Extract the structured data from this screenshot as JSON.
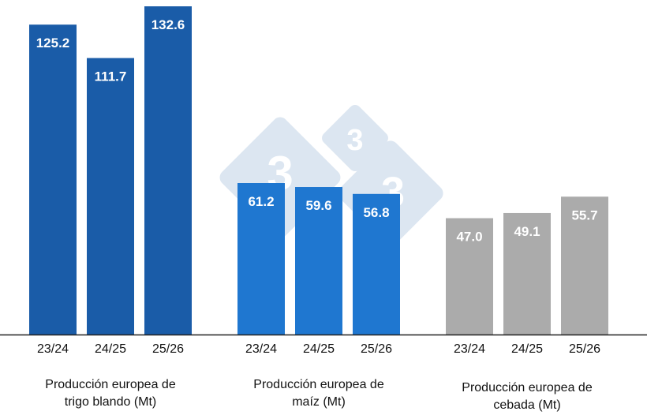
{
  "chart_data": {
    "type": "bar",
    "categories": [
      "23/24",
      "24/25",
      "25/26"
    ],
    "groups": [
      {
        "label": "Producción europea de trigo blando (Mt)",
        "line1": "Producción europea de",
        "line2": "trigo blando (Mt)",
        "values": [
          125.2,
          111.7,
          132.6
        ],
        "color": "#1a5ca8"
      },
      {
        "label": "Producción europea de maíz (Mt)",
        "line1": "Producción europea de",
        "line2": "maíz (Mt)",
        "values": [
          61.2,
          59.6,
          56.8
        ],
        "color": "#1f77d0"
      },
      {
        "label": "Producción europea de cebada (Mt)",
        "line1": "Producción europea de",
        "line2": "cebada (Mt)",
        "values": [
          47.0,
          49.1,
          55.7
        ],
        "color": "#ababab"
      }
    ],
    "data_labels": true,
    "grid": false,
    "ylim": [
      0,
      135
    ],
    "watermark": "333"
  }
}
